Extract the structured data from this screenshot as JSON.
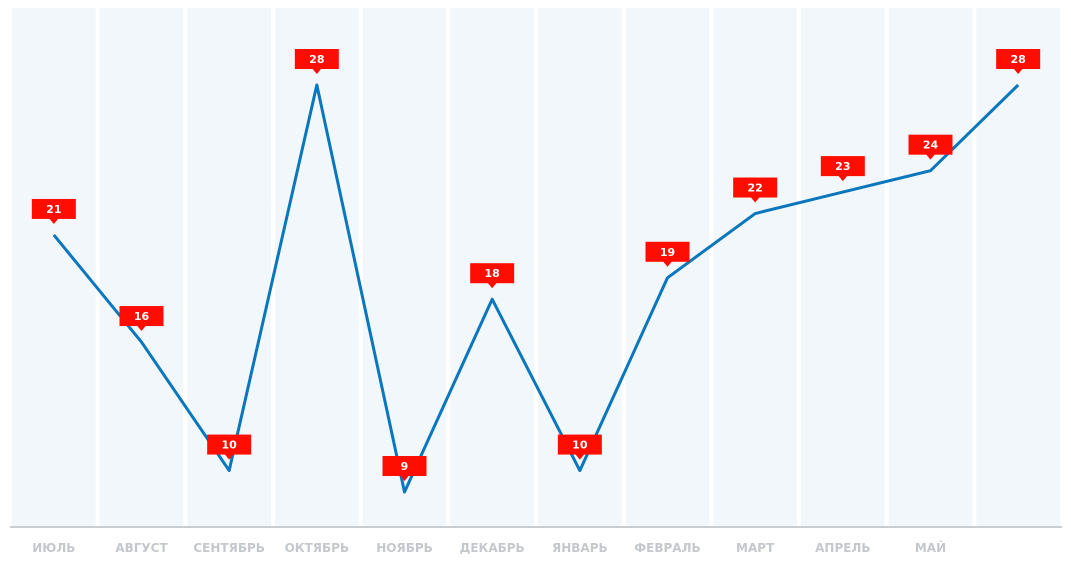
{
  "chart_data": {
    "type": "line",
    "categories": [
      "ИЮЛЬ",
      "АВГУСТ",
      "СЕНТЯБРЬ",
      "ОКТЯБРЬ",
      "НОЯБРЬ",
      "ДЕКАБРЬ",
      "ЯНВАРЬ",
      "ФЕВРАЛЬ",
      "МАРТ",
      "АПРЕЛЬ",
      "МАЙ",
      null
    ],
    "values": [
      21,
      16,
      10,
      28,
      9,
      18,
      10,
      19,
      22,
      23,
      24,
      28
    ],
    "color": "#0a77bd",
    "label_color": "#ff0d00"
  }
}
